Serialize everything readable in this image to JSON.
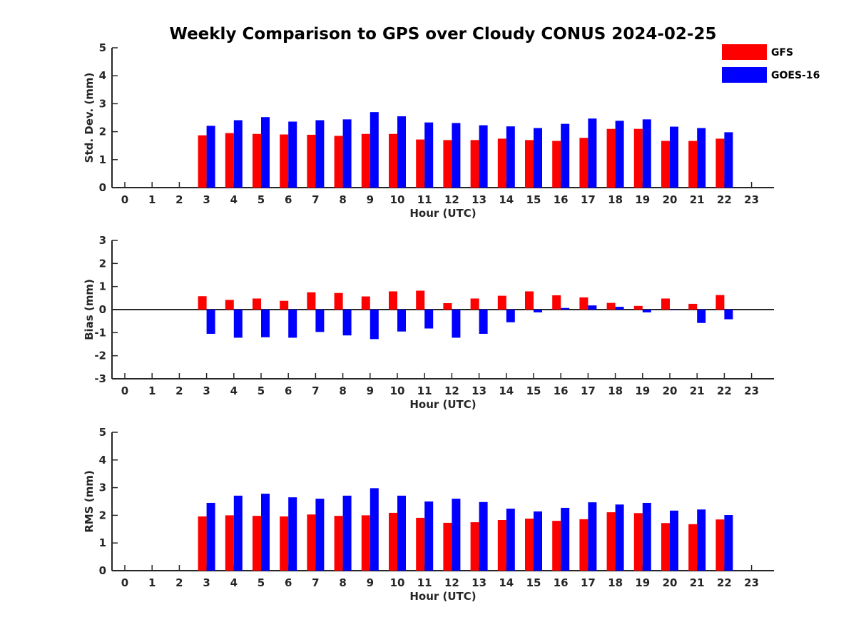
{
  "chart_data": {
    "title": "Weekly Comparison to GPS over Cloudy CONUS 2024-02-25",
    "legend": {
      "placement": "top-right",
      "entries": [
        {
          "name": "GFS",
          "color": "#ff0000"
        },
        {
          "name": "GOES-16",
          "color": "#0000ff"
        }
      ]
    },
    "panels": [
      {
        "type": "bar",
        "ylabel": "Std. Dev. (mm)",
        "xlabel": "Hour (UTC)",
        "ylim": [
          0,
          5
        ],
        "yticks": [
          "0",
          "1",
          "2",
          "3",
          "4",
          "5"
        ],
        "categories": [
          "0",
          "1",
          "2",
          "3",
          "4",
          "5",
          "6",
          "7",
          "8",
          "9",
          "10",
          "11",
          "12",
          "13",
          "14",
          "15",
          "16",
          "17",
          "18",
          "19",
          "20",
          "21",
          "22",
          "23"
        ],
        "series": [
          {
            "name": "GFS",
            "color": "#ff0000",
            "values": [
              null,
              null,
              null,
              1.87,
              1.95,
              1.92,
              1.9,
              1.89,
              1.85,
              1.92,
              1.92,
              1.72,
              1.7,
              1.7,
              1.75,
              1.7,
              1.67,
              1.78,
              2.1,
              2.1,
              1.67,
              1.67,
              1.75,
              null
            ]
          },
          {
            "name": "GOES-16",
            "color": "#0000ff",
            "values": [
              null,
              null,
              null,
              2.21,
              2.41,
              2.52,
              2.36,
              2.41,
              2.44,
              2.7,
              2.55,
              2.33,
              2.31,
              2.23,
              2.19,
              2.13,
              2.28,
              2.47,
              2.39,
              2.44,
              2.18,
              2.13,
              1.98,
              null
            ]
          }
        ]
      },
      {
        "type": "bar",
        "ylabel": "Bias (mm)",
        "xlabel": "Hour (UTC)",
        "ylim": [
          -3,
          3
        ],
        "yticks": [
          "-3",
          "-2",
          "-1",
          "0",
          "1",
          "2",
          "3"
        ],
        "categories": [
          "0",
          "1",
          "2",
          "3",
          "4",
          "5",
          "6",
          "7",
          "8",
          "9",
          "10",
          "11",
          "12",
          "13",
          "14",
          "15",
          "16",
          "17",
          "18",
          "19",
          "20",
          "21",
          "22",
          "23"
        ],
        "series": [
          {
            "name": "GFS",
            "color": "#ff0000",
            "values": [
              null,
              null,
              null,
              0.58,
              0.42,
              0.48,
              0.38,
              0.75,
              0.72,
              0.57,
              0.79,
              0.82,
              0.28,
              0.48,
              0.6,
              0.79,
              0.62,
              0.53,
              0.29,
              0.16,
              0.48,
              0.25,
              0.63,
              null
            ]
          },
          {
            "name": "GOES-16",
            "color": "#0000ff",
            "values": [
              null,
              null,
              null,
              -1.05,
              -1.22,
              -1.2,
              -1.22,
              -0.97,
              -1.12,
              -1.28,
              -0.95,
              -0.82,
              -1.22,
              -1.05,
              -0.55,
              -0.12,
              0.07,
              0.18,
              0.12,
              -0.12,
              0.0,
              -0.58,
              -0.42,
              null
            ]
          }
        ]
      },
      {
        "type": "bar",
        "ylabel": "RMS (mm)",
        "xlabel": "Hour (UTC)",
        "ylim": [
          0,
          5
        ],
        "yticks": [
          "0",
          "1",
          "2",
          "3",
          "4",
          "5"
        ],
        "categories": [
          "0",
          "1",
          "2",
          "3",
          "4",
          "5",
          "6",
          "7",
          "8",
          "9",
          "10",
          "11",
          "12",
          "13",
          "14",
          "15",
          "16",
          "17",
          "18",
          "19",
          "20",
          "21",
          "22",
          "23"
        ],
        "series": [
          {
            "name": "GFS",
            "color": "#ff0000",
            "values": [
              null,
              null,
              null,
              1.96,
              2.0,
              1.98,
              1.96,
              2.03,
              1.98,
              2.0,
              2.09,
              1.91,
              1.73,
              1.75,
              1.83,
              1.88,
              1.8,
              1.86,
              2.11,
              2.08,
              1.72,
              1.68,
              1.85,
              null
            ]
          },
          {
            "name": "GOES-16",
            "color": "#0000ff",
            "values": [
              null,
              null,
              null,
              2.45,
              2.71,
              2.78,
              2.65,
              2.6,
              2.71,
              2.98,
              2.71,
              2.5,
              2.6,
              2.48,
              2.24,
              2.14,
              2.27,
              2.47,
              2.39,
              2.45,
              2.17,
              2.21,
              2.01,
              null
            ]
          }
        ]
      }
    ]
  }
}
